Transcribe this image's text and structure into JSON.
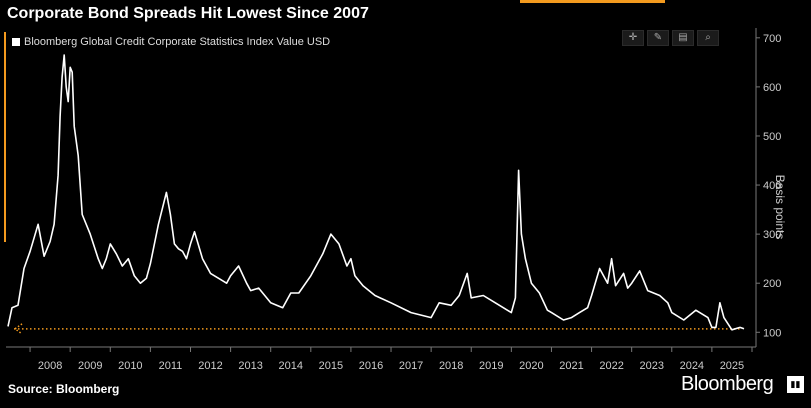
{
  "chart_data": {
    "type": "line",
    "title": "Corporate Bond Spreads Hit Lowest Since 2007",
    "ylabel": "Basis points",
    "xlabel": "",
    "ylim": [
      70,
      720
    ],
    "xlim": [
      2007.4,
      2026.1
    ],
    "yticks": [
      100,
      200,
      300,
      400,
      500,
      600,
      700
    ],
    "xticks": [
      "2008",
      "2009",
      "2010",
      "2011",
      "2012",
      "2013",
      "2014",
      "2015",
      "2016",
      "2017",
      "2018",
      "2019",
      "2020",
      "2021",
      "2022",
      "2023",
      "2024",
      "2025"
    ],
    "grid": false,
    "legend_placement": "top-left",
    "reference_line": {
      "value": 107,
      "color": "#f39a1e",
      "style": "dotted"
    },
    "series": [
      {
        "name": "Bloomberg Global Credit Corporate Statistics Index Value USD",
        "color": "#ffffff",
        "x": [
          2007.45,
          2007.55,
          2007.7,
          2007.85,
          2008.0,
          2008.2,
          2008.35,
          2008.5,
          2008.6,
          2008.7,
          2008.75,
          2008.8,
          2008.85,
          2008.9,
          2008.95,
          2009.0,
          2009.05,
          2009.1,
          2009.2,
          2009.3,
          2009.5,
          2009.7,
          2009.8,
          2009.9,
          2010.0,
          2010.15,
          2010.3,
          2010.45,
          2010.6,
          2010.75,
          2010.9,
          2011.0,
          2011.2,
          2011.4,
          2011.5,
          2011.6,
          2011.7,
          2011.8,
          2011.9,
          2012.0,
          2012.1,
          2012.3,
          2012.5,
          2012.7,
          2012.9,
          2013.0,
          2013.2,
          2013.4,
          2013.5,
          2013.7,
          2014.0,
          2014.3,
          2014.5,
          2014.7,
          2015.0,
          2015.3,
          2015.5,
          2015.7,
          2015.9,
          2016.0,
          2016.1,
          2016.3,
          2016.6,
          2017.0,
          2017.5,
          2018.0,
          2018.2,
          2018.5,
          2018.7,
          2018.9,
          2019.0,
          2019.3,
          2019.6,
          2019.8,
          2020.0,
          2020.1,
          2020.18,
          2020.25,
          2020.35,
          2020.5,
          2020.7,
          2020.9,
          2021.0,
          2021.3,
          2021.5,
          2021.7,
          2021.9,
          2022.0,
          2022.2,
          2022.4,
          2022.5,
          2022.6,
          2022.8,
          2022.9,
          2023.0,
          2023.2,
          2023.4,
          2023.7,
          2023.9,
          2024.0,
          2024.3,
          2024.6,
          2024.9,
          2025.0,
          2025.1,
          2025.2,
          2025.3,
          2025.5,
          2025.7,
          2025.8
        ],
        "values": [
          112,
          150,
          155,
          230,
          265,
          320,
          255,
          285,
          320,
          420,
          540,
          620,
          665,
          600,
          570,
          640,
          630,
          520,
          460,
          340,
          300,
          250,
          230,
          250,
          280,
          260,
          235,
          250,
          215,
          200,
          210,
          240,
          320,
          385,
          340,
          280,
          270,
          265,
          250,
          280,
          305,
          250,
          220,
          210,
          200,
          215,
          235,
          200,
          185,
          190,
          160,
          150,
          180,
          180,
          215,
          260,
          300,
          280,
          235,
          250,
          215,
          195,
          175,
          160,
          140,
          130,
          160,
          155,
          175,
          220,
          170,
          175,
          160,
          150,
          140,
          170,
          430,
          300,
          250,
          200,
          180,
          145,
          140,
          125,
          130,
          140,
          150,
          175,
          230,
          200,
          250,
          195,
          220,
          190,
          200,
          225,
          185,
          175,
          160,
          140,
          125,
          145,
          130,
          110,
          110,
          160,
          130,
          105,
          110,
          107
        ]
      }
    ]
  },
  "legend": {
    "label": "Bloomberg Global Credit Corporate Statistics Index Value USD"
  },
  "source": {
    "label": "Source: Bloomberg"
  },
  "brand": {
    "name": "Bloomberg"
  },
  "toolbar": {
    "icons": [
      "crosshair-icon",
      "pencil-icon",
      "layers-icon",
      "zoom-icon"
    ]
  }
}
